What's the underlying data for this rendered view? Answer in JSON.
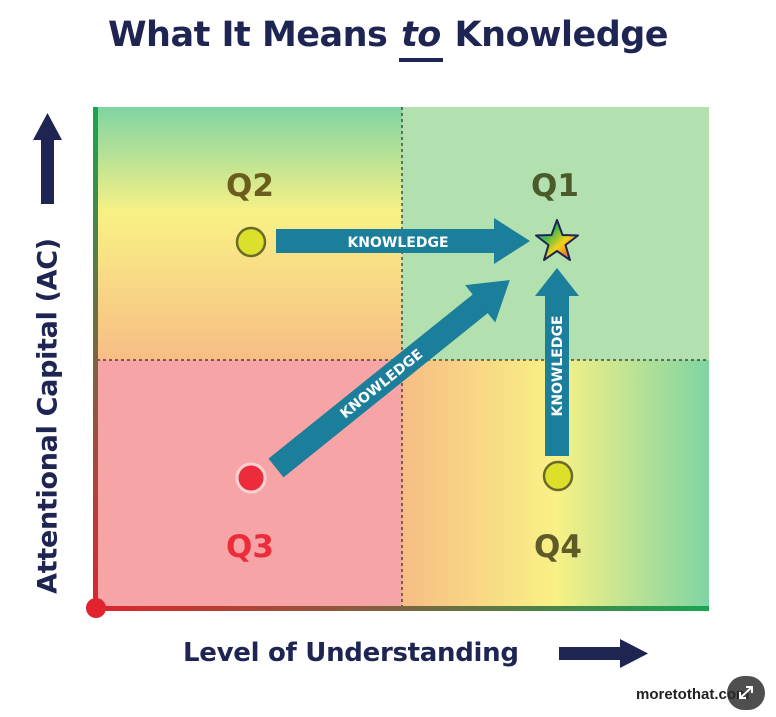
{
  "title": {
    "before": "What It Means ",
    "emphasis": "to",
    "after": " Knowledge"
  },
  "axes": {
    "y_label": "Attentional Capital (AC)",
    "x_label": "Level of Understanding"
  },
  "quadrants": {
    "q1": "Q1",
    "q2": "Q2",
    "q3": "Q3",
    "q4": "Q4"
  },
  "arrows": {
    "top": "KNOWLEDGE",
    "diagonal": "KNOWLEDGE",
    "vertical": "KNOWLEDGE"
  },
  "colors": {
    "navy": "#1e2552",
    "arrow_teal": "#1b7e9a",
    "q3_red": "#ec2c3a",
    "q1_text": "#4a5a2b",
    "q2_text": "#6b5d1e",
    "q4_text": "#5e5b28",
    "circle_yellow": "#dde02a"
  },
  "watermark": "moretothat.com"
}
